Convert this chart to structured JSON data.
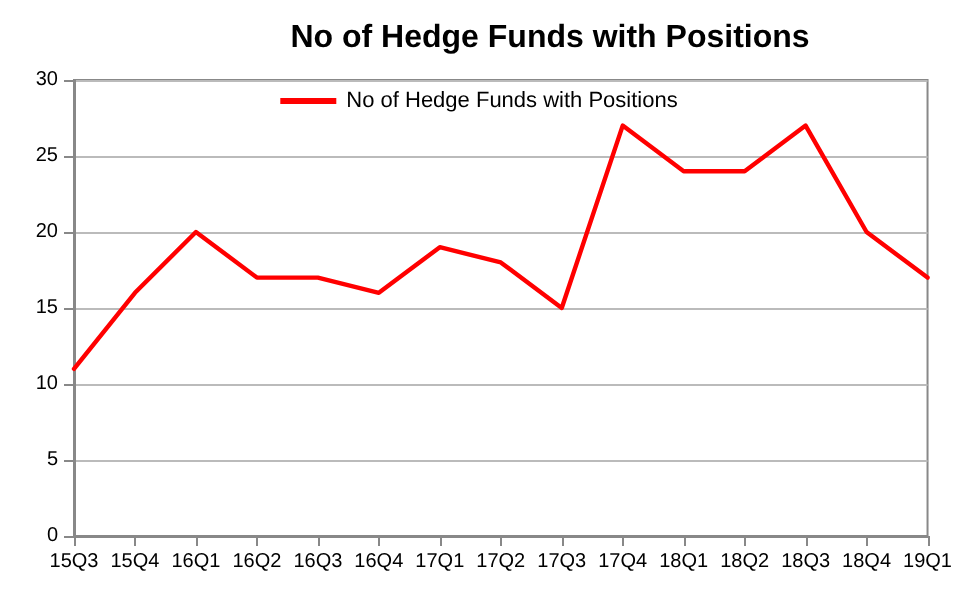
{
  "chart_data": {
    "type": "line",
    "title": "No of Hedge Funds with Positions",
    "categories": [
      "15Q3",
      "15Q4",
      "16Q1",
      "16Q2",
      "16Q3",
      "16Q4",
      "17Q1",
      "17Q2",
      "17Q3",
      "17Q4",
      "18Q1",
      "18Q2",
      "18Q3",
      "18Q4",
      "19Q1"
    ],
    "series": [
      {
        "name": "No of Hedge Funds with Positions",
        "color": "#ff0000",
        "values": [
          11,
          16,
          20,
          17,
          17,
          16,
          19,
          18,
          15,
          27,
          24,
          24,
          27,
          20,
          17
        ]
      }
    ],
    "ylim": [
      0,
      30
    ],
    "yticks": [
      0,
      5,
      10,
      15,
      20,
      25,
      30
    ],
    "grid": "y",
    "legend": "top",
    "marker": "none",
    "line_style": "solid"
  }
}
